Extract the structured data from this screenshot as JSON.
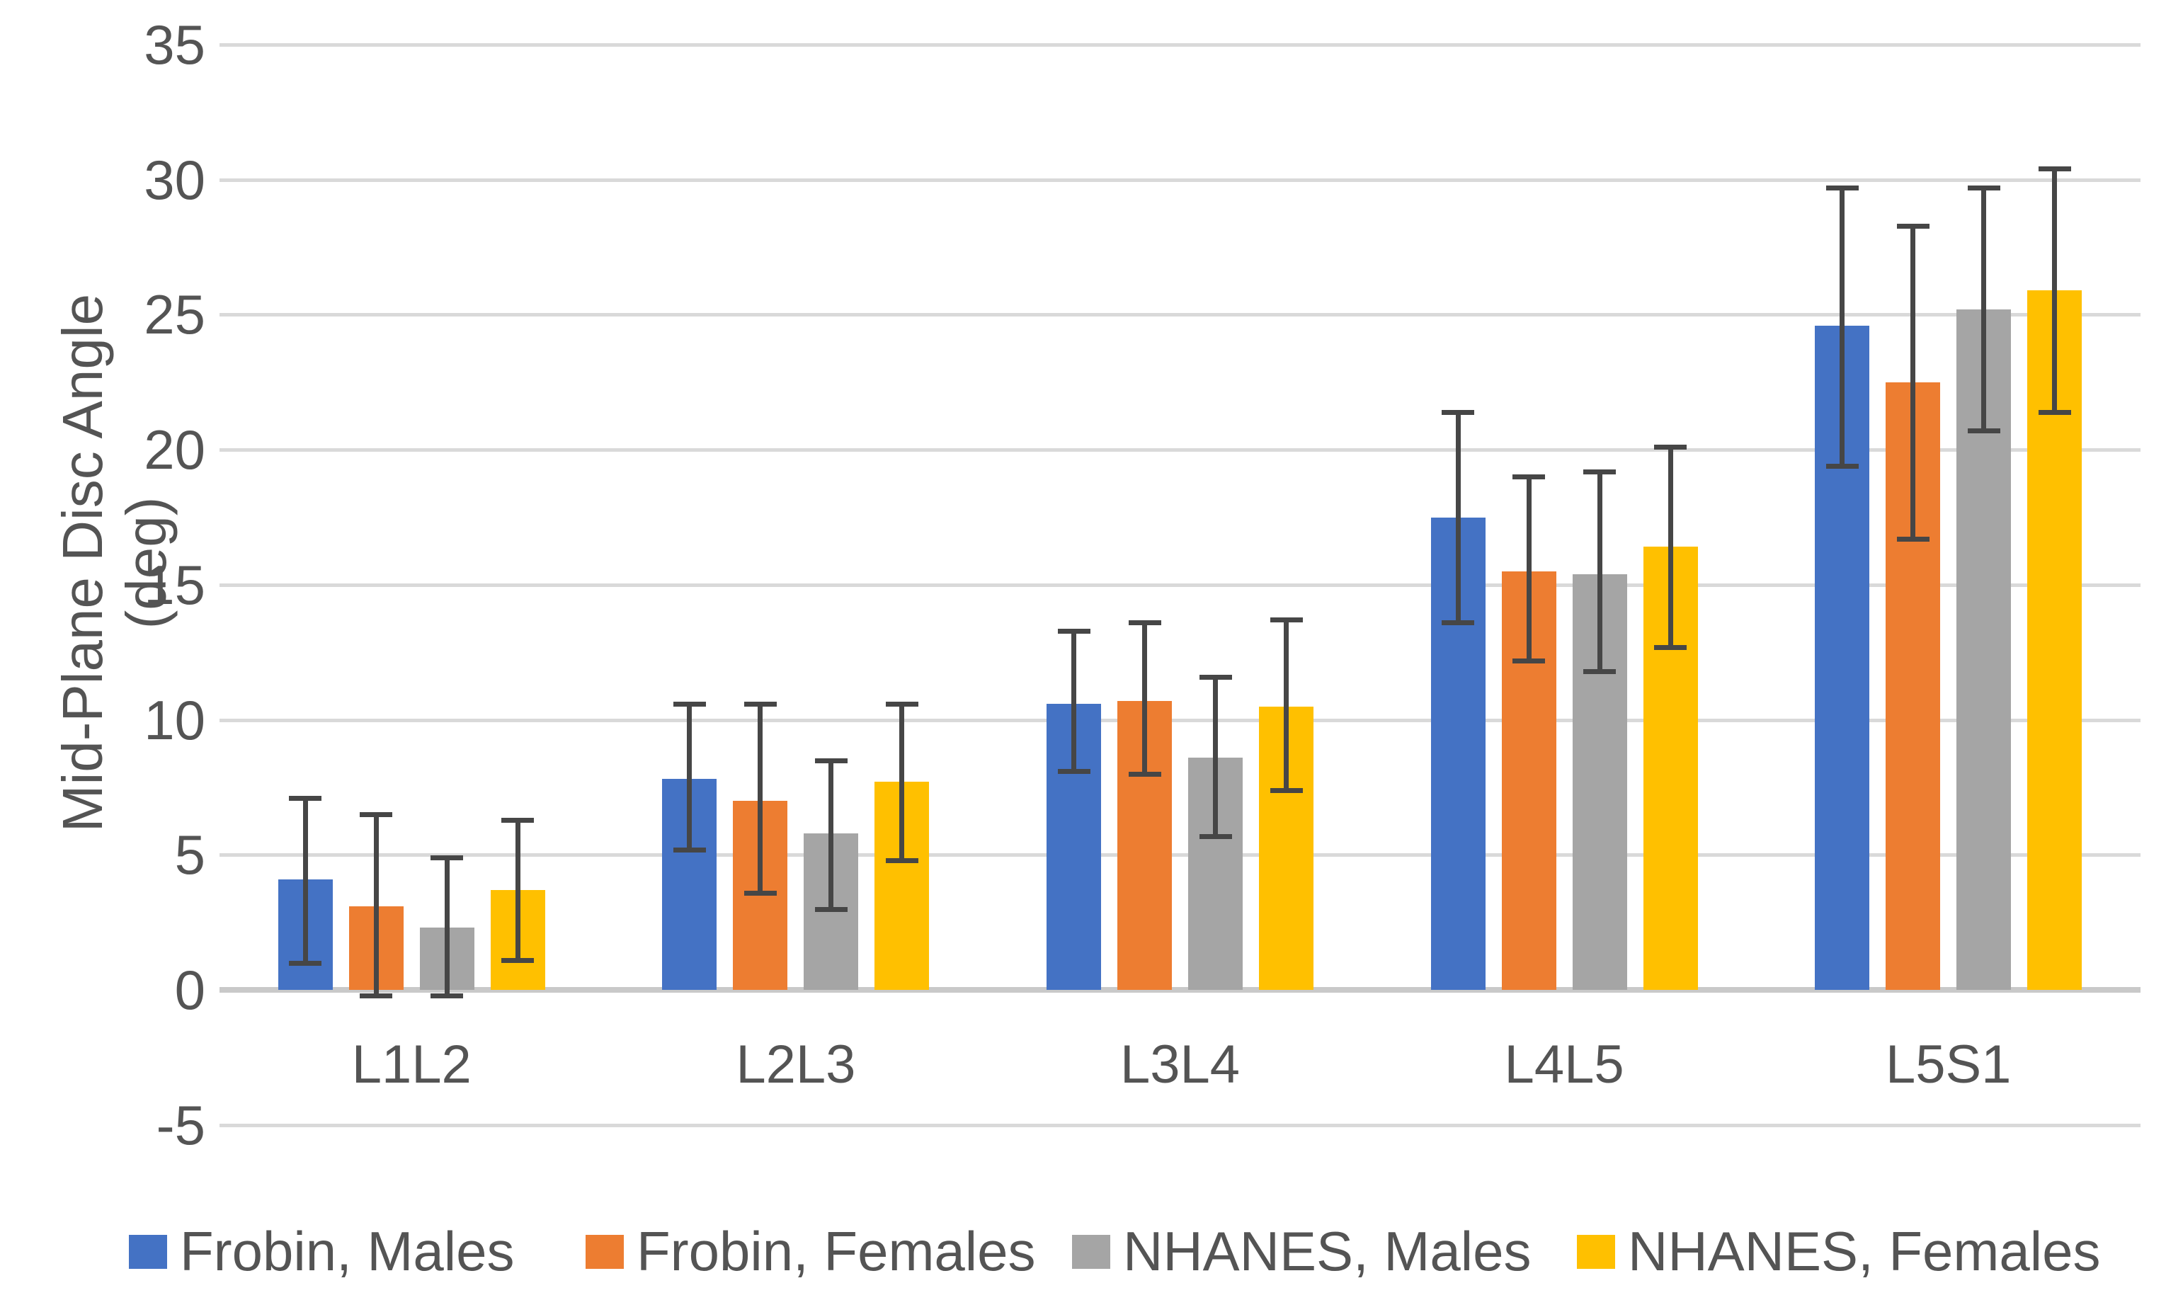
{
  "chart_data": {
    "type": "bar",
    "ylabel": "Mid-Plane Disc Angle (deg)",
    "categories": [
      "L1L2",
      "L2L3",
      "L3L4",
      "L4L5",
      "L5S1"
    ],
    "series": [
      {
        "name": "Frobin, Males",
        "color": "#4472C4",
        "values": [
          4.1,
          7.8,
          10.6,
          17.5,
          24.6
        ],
        "error_high": [
          7.1,
          10.6,
          13.3,
          21.4,
          29.7
        ],
        "error_low": [
          1.0,
          5.2,
          8.1,
          13.6,
          19.4
        ]
      },
      {
        "name": "Frobin, Females",
        "color": "#ED7D31",
        "values": [
          3.1,
          7.0,
          10.7,
          15.5,
          22.5
        ],
        "error_high": [
          6.5,
          10.6,
          13.6,
          19.0,
          28.3
        ],
        "error_low": [
          -0.2,
          3.6,
          8.0,
          12.2,
          16.7
        ]
      },
      {
        "name": "NHANES, Males",
        "color": "#A5A5A5",
        "values": [
          2.3,
          5.8,
          8.6,
          15.4,
          25.2
        ],
        "error_high": [
          4.9,
          8.5,
          11.6,
          19.2,
          29.7
        ],
        "error_low": [
          -0.2,
          3.0,
          5.7,
          11.8,
          20.7
        ]
      },
      {
        "name": "NHANES, Females",
        "color": "#FFC000",
        "values": [
          3.7,
          7.7,
          10.5,
          16.4,
          25.9
        ],
        "error_high": [
          6.3,
          10.6,
          13.7,
          20.1,
          30.4
        ],
        "error_low": [
          1.1,
          4.8,
          7.4,
          12.7,
          21.4
        ]
      }
    ],
    "y_axis": {
      "min": -5,
      "max": 35,
      "step": 5,
      "ticks": [
        35,
        30,
        25,
        20,
        15,
        10,
        5,
        0,
        -5
      ]
    },
    "grid": "horizontal",
    "legend_position": "bottom",
    "colors": {
      "gridline": "#D9D9D9",
      "axis_line": "#C9C9C9",
      "error_bar": "#464646",
      "text": "#545454"
    }
  }
}
